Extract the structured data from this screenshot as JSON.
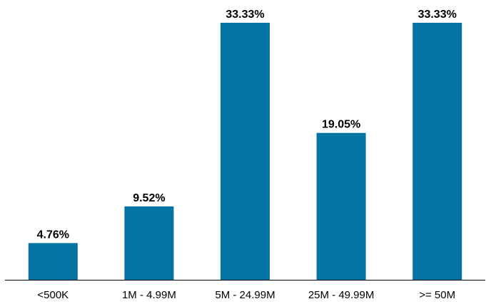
{
  "chart_data": {
    "type": "bar",
    "categories": [
      "<500K",
      "1M - 4.99M",
      "5M - 24.99M",
      "25M - 49.99M",
      ">= 50M"
    ],
    "values": [
      4.76,
      9.52,
      33.33,
      19.05,
      33.33
    ],
    "data_labels": [
      "4.76%",
      "9.52%",
      "33.33%",
      "19.05%",
      "33.33%"
    ],
    "title": "",
    "xlabel": "",
    "ylabel": "",
    "ylim": [
      0,
      33.33
    ],
    "grid": false,
    "legend": "none",
    "colors": {
      "bar": "#0374a2",
      "axis": "#000000"
    }
  }
}
